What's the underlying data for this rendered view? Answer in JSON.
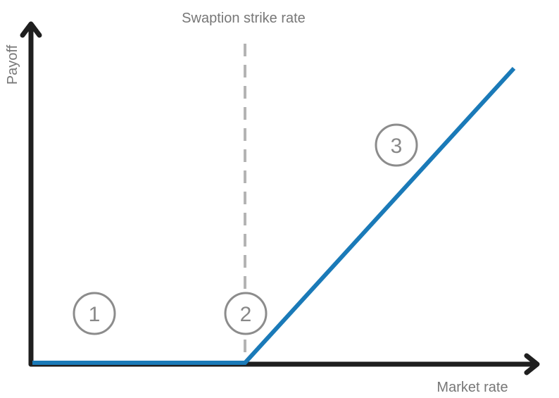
{
  "labels": {
    "strike": "Swaption strike rate",
    "y_axis": "Payoff",
    "x_axis": "Market rate"
  },
  "markers": [
    "1",
    "2",
    "3"
  ],
  "colors": {
    "axis": "#1f1f1f",
    "payoff_line": "#1a7ab8",
    "strike_line": "#b4b4b4",
    "label_text": "#777777",
    "marker_stroke": "#8c8c8c"
  }
}
